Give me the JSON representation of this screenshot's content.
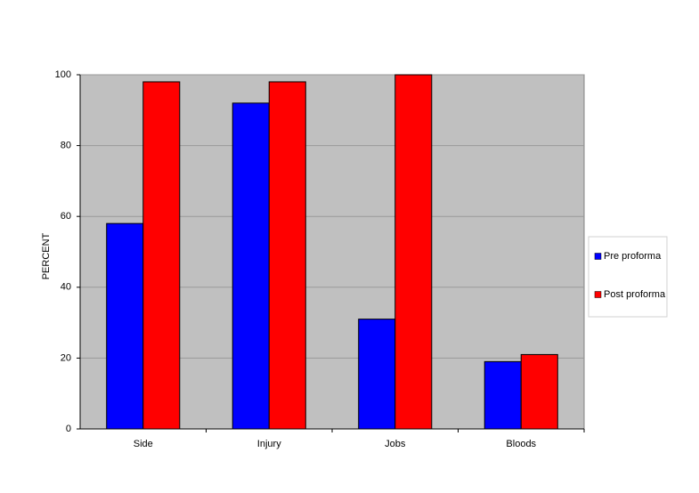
{
  "chart_data": {
    "type": "bar",
    "y_label": "PERCENT",
    "categories": [
      "Side",
      "Injury",
      "Jobs",
      "Bloods"
    ],
    "series": [
      {
        "name": "Pre proforma",
        "color": "#0000ff",
        "values": [
          58,
          92,
          31,
          19
        ]
      },
      {
        "name": "Post proforma",
        "color": "#ff0000",
        "values": [
          98,
          98,
          100,
          21
        ]
      }
    ],
    "ylim": [
      0,
      100
    ],
    "yticks": [
      0,
      20,
      40,
      60,
      80,
      100
    ],
    "grid": true,
    "legend": "right"
  }
}
